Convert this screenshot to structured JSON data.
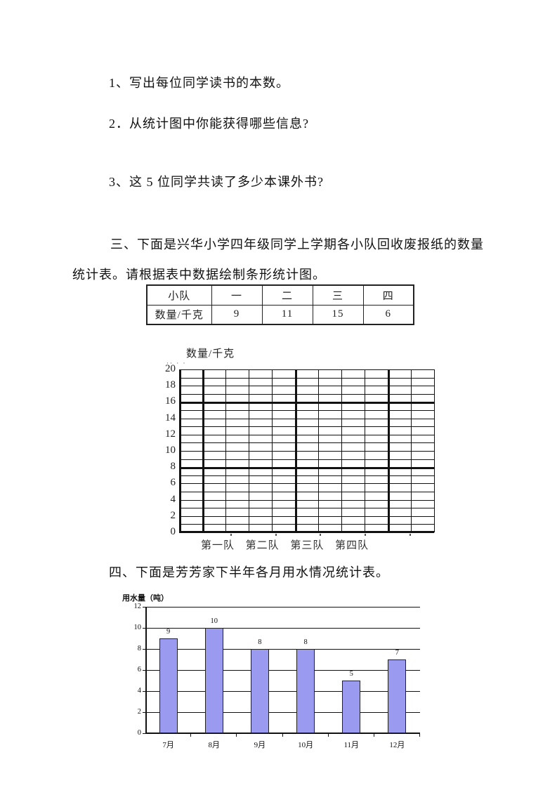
{
  "page": {
    "background": "#ffffff"
  },
  "questions": [
    {
      "text": "1、写出每位同学读书的本数。"
    },
    {
      "text": "2．从统计图中你能获得哪些信息?"
    },
    {
      "text": "3、这 5 位同学共读了多少本课外书?"
    }
  ],
  "section3": {
    "heading_line1": "三、下面是兴华小学四年级同学上学期各小队回收废报纸的数量",
    "heading_line2": "统计表。请根据表中数据绘制条形统计图。",
    "table": {
      "rows": [
        [
          "小队",
          "一",
          "二",
          "三",
          "四"
        ],
        [
          "数量/千克",
          "9",
          "11",
          "15",
          "6"
        ]
      ]
    }
  },
  "section4": {
    "heading": "四、下面是芳芳家下半年各月用水情况统计表。"
  },
  "ornaments": {
    "grid_top_dots": "·· · ·"
  },
  "chart_data": [
    {
      "id": "recycle-empty-grid",
      "type": "bar",
      "title": "",
      "ylabel": "数量/千克",
      "xlabel": "",
      "categories": [
        "第一队",
        "第二队",
        "第三队",
        "第四队"
      ],
      "values": [],
      "table_values_to_plot": [
        9,
        11,
        15,
        6
      ],
      "ylim": [
        0,
        20
      ],
      "ytick_step": 2,
      "yticks": [
        0,
        2,
        4,
        6,
        8,
        10,
        12,
        14,
        16,
        18,
        20
      ],
      "unit_gridlines": true,
      "bold_gridlines_at": [
        8,
        16
      ],
      "grid": true,
      "legend": "none",
      "note": "empty grid for students to draw bars"
    },
    {
      "id": "water-usage",
      "type": "bar",
      "title": "",
      "ylabel": "用水量（吨）",
      "xlabel": "",
      "categories": [
        "7月",
        "8月",
        "9月",
        "10月",
        "11月",
        "12月"
      ],
      "values": [
        9,
        10,
        8,
        8,
        5,
        7
      ],
      "data_labels": [
        "9",
        "10",
        "8",
        "8",
        "5",
        "7"
      ],
      "ylim": [
        0,
        12
      ],
      "ytick_step": 2,
      "yticks": [
        0,
        2,
        4,
        6,
        8,
        10,
        12
      ],
      "grid": true,
      "legend": "none",
      "bar_color": "#9a9af0",
      "bar_border_color": "#222222"
    }
  ]
}
